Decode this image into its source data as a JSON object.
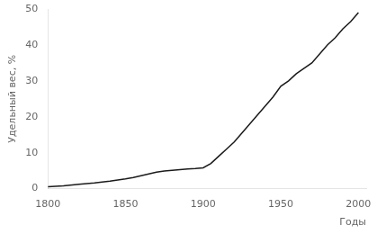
{
  "chart_data": {
    "type": "line",
    "xlabel": "Годы",
    "ylabel": "Удельный вес, %",
    "x": [
      1800,
      1810,
      1820,
      1830,
      1840,
      1850,
      1855,
      1860,
      1865,
      1870,
      1875,
      1880,
      1885,
      1890,
      1895,
      1900,
      1905,
      1910,
      1915,
      1920,
      1925,
      1930,
      1935,
      1940,
      1945,
      1950,
      1955,
      1960,
      1965,
      1970,
      1975,
      1980,
      1985,
      1990,
      1995,
      2000
    ],
    "values": [
      0.5,
      0.8,
      1.2,
      1.6,
      2.1,
      2.7,
      3.1,
      3.6,
      4.1,
      4.6,
      4.9,
      5.1,
      5.3,
      5.5,
      5.6,
      5.8,
      7.0,
      9.0,
      11.0,
      13.0,
      15.5,
      18.0,
      20.5,
      23.0,
      25.5,
      28.5,
      30.0,
      32.0,
      33.5,
      35.0,
      37.5,
      40.0,
      42.0,
      44.5,
      46.5,
      49.0
    ],
    "color": "#1a1a1a",
    "xlim": [
      1800,
      2005
    ],
    "ylim": [
      0,
      50
    ],
    "xticks": [
      1800,
      1850,
      1900,
      1950,
      2000
    ],
    "yticks": [
      0,
      10,
      20,
      30,
      40,
      50
    ],
    "grid": false
  }
}
